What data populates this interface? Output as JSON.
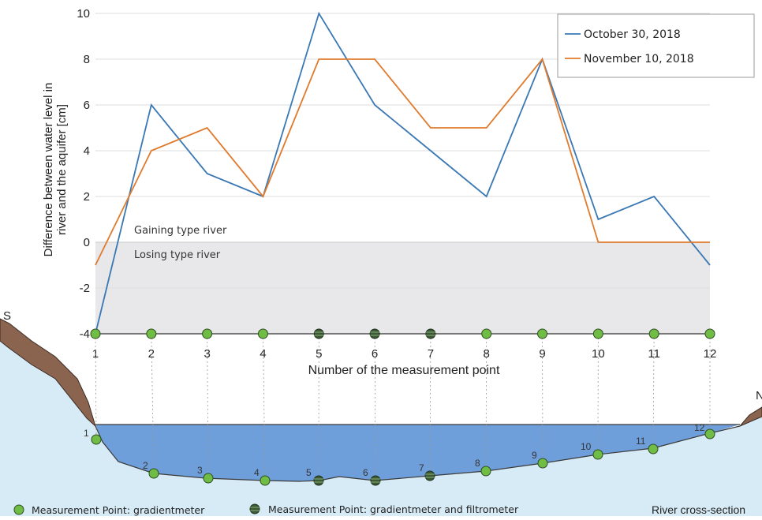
{
  "chart_data": {
    "type": "line",
    "title": "",
    "xlabel": "Number of the measurement point",
    "ylabel_lines": [
      "Difference between water level in",
      "river and the aquifer [cm]"
    ],
    "categories": [
      1,
      2,
      3,
      4,
      5,
      6,
      7,
      8,
      9,
      10,
      11,
      12
    ],
    "ylim": [
      -4,
      10
    ],
    "yticks": [
      -4,
      -2,
      0,
      2,
      4,
      6,
      8,
      10
    ],
    "grid": true,
    "legend_position": "top-right",
    "series": [
      {
        "name": "October 30, 2018",
        "color": "#3a78b4",
        "values": [
          -4,
          6,
          3,
          2,
          10,
          6,
          4,
          2,
          8,
          1,
          2,
          -1
        ]
      },
      {
        "name": "November 10, 2018",
        "color": "#e07b2e",
        "values": [
          -1,
          4,
          5,
          2,
          8,
          8,
          5,
          5,
          8,
          0,
          0,
          0
        ]
      }
    ],
    "annotations": {
      "gaining": "Gaining type river",
      "losing": "Losing type river"
    }
  },
  "diagram": {
    "south_label": "S",
    "north_label": "N",
    "cross_section_label": "River cross-section",
    "legend": {
      "gradientmeter": "Measurement Point: gradientmeter",
      "gradientmeter_filtrometer": "Measurement Point: gradientmeter and filtrometer"
    },
    "point_labels": [
      "1",
      "2",
      "3",
      "4",
      "5",
      "6",
      "7",
      "8",
      "9",
      "10",
      "11",
      "12"
    ],
    "point_types": [
      "g",
      "g",
      "g",
      "g",
      "gf",
      "gf",
      "gf",
      "g",
      "g",
      "g",
      "g",
      "g"
    ]
  },
  "colors": {
    "water": "#6f9fdb",
    "sky_fill": "#d7ebf6",
    "bank": "#8b6450",
    "marker_green": "#6fbd45",
    "marker_dark": "#3c5a36"
  }
}
